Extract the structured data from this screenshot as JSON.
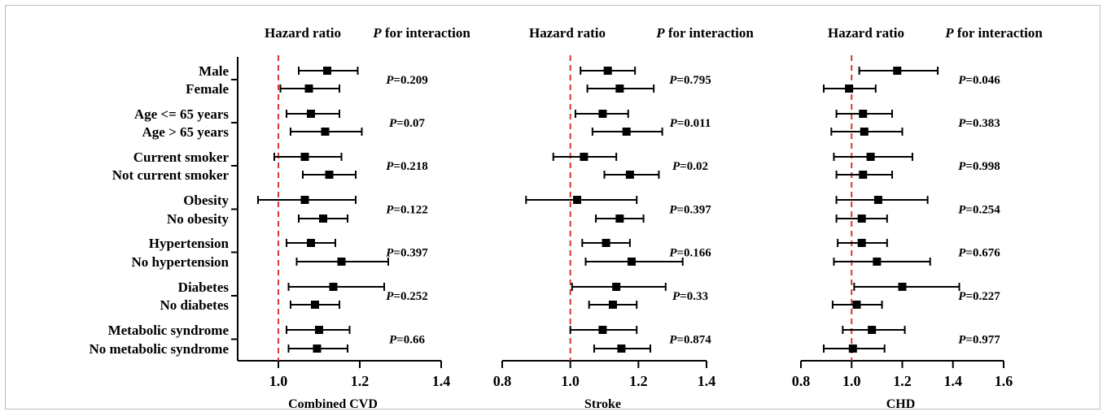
{
  "chart_data": {
    "type": "forest",
    "header_hr": "Hazard ratio",
    "header_p_prefix": "P",
    "header_p_suffix": " for interaction",
    "p_prefix": "P",
    "subgroups": [
      "Male",
      "Female",
      "Age <= 65 years",
      "Age > 65 years",
      "Current smoker",
      "Not current smoker",
      "Obesity",
      "No obesity",
      "Hypertension",
      "No hypertension",
      "Diabetes",
      "No diabetes",
      "Metabolic syndrome",
      "No metabolic syndrome"
    ],
    "reference_line": 1.0,
    "panels": [
      {
        "title": "Combined CVD",
        "xlim": [
          0.9,
          1.4
        ],
        "ticks": [
          "1.0",
          "1.2",
          "1.4"
        ],
        "hr": [
          1.12,
          1.075,
          1.08,
          1.115,
          1.065,
          1.125,
          1.065,
          1.11,
          1.08,
          1.155,
          1.135,
          1.09,
          1.1,
          1.095
        ],
        "lo": [
          1.05,
          1.005,
          1.02,
          1.03,
          0.99,
          1.06,
          0.95,
          1.05,
          1.02,
          1.045,
          1.025,
          1.03,
          1.02,
          1.025
        ],
        "hi": [
          1.195,
          1.15,
          1.15,
          1.205,
          1.155,
          1.19,
          1.19,
          1.17,
          1.14,
          1.27,
          1.26,
          1.15,
          1.175,
          1.17
        ],
        "p_values": [
          "=0.209",
          "=0.07",
          "=0.218",
          "=0.122",
          "=0.397",
          "=0.252",
          "=0.66"
        ]
      },
      {
        "title": "Stroke",
        "xlim": [
          0.8,
          1.4
        ],
        "ticks": [
          "0.8",
          "1.0",
          "1.2",
          "1.4"
        ],
        "hr": [
          1.11,
          1.145,
          1.095,
          1.165,
          1.04,
          1.175,
          1.02,
          1.145,
          1.105,
          1.18,
          1.135,
          1.125,
          1.095,
          1.15
        ],
        "lo": [
          1.03,
          1.05,
          1.015,
          1.065,
          0.95,
          1.1,
          0.87,
          1.075,
          1.035,
          1.045,
          1.005,
          1.055,
          1.0,
          1.07
        ],
        "hi": [
          1.19,
          1.245,
          1.17,
          1.27,
          1.135,
          1.26,
          1.195,
          1.215,
          1.175,
          1.33,
          1.28,
          1.195,
          1.195,
          1.235
        ],
        "p_values": [
          "=0.795",
          "=0.011",
          "=0.02",
          "=0.397",
          "=0.166",
          "=0.33",
          "=0.874"
        ]
      },
      {
        "title": "CHD",
        "xlim": [
          0.8,
          1.6
        ],
        "ticks": [
          "0.8",
          "1.0",
          "1.2",
          "1.4",
          "1.6"
        ],
        "hr": [
          1.18,
          0.99,
          1.045,
          1.05,
          1.075,
          1.045,
          1.105,
          1.04,
          1.04,
          1.1,
          1.2,
          1.02,
          1.08,
          1.005
        ],
        "lo": [
          1.03,
          0.89,
          0.94,
          0.92,
          0.93,
          0.94,
          0.94,
          0.94,
          0.945,
          0.93,
          1.01,
          0.925,
          0.965,
          0.89
        ],
        "hi": [
          1.34,
          1.095,
          1.16,
          1.2,
          1.24,
          1.16,
          1.3,
          1.14,
          1.14,
          1.31,
          1.425,
          1.12,
          1.21,
          1.13
        ],
        "p_values": [
          "=0.046",
          "=0.383",
          "=0.998",
          "=0.254",
          "=0.676",
          "=0.227",
          "=0.977"
        ]
      }
    ]
  }
}
